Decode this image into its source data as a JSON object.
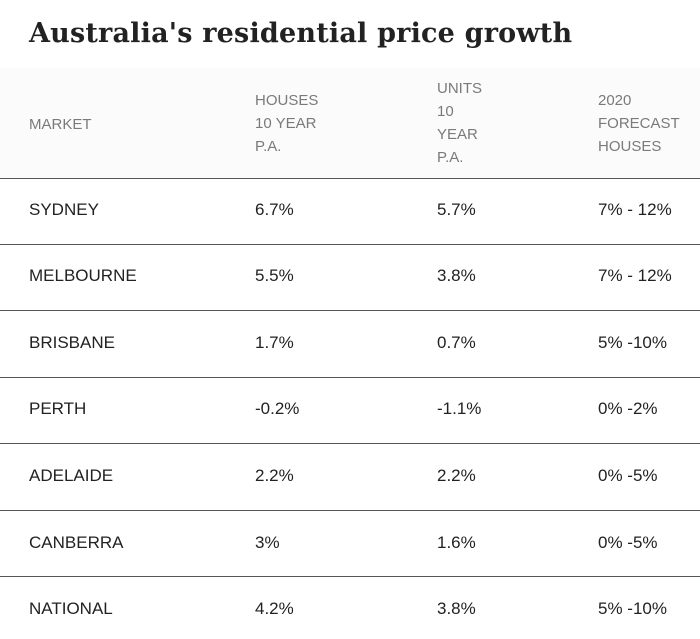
{
  "title": "Australia's residential price growth",
  "table": {
    "headers": [
      "MARKET",
      "HOUSES\n10 YEAR\nP.A.",
      "UNITS\n10\nYEAR\nP.A.",
      "2020\nFORECAST\nHOUSES"
    ],
    "rows": [
      [
        "SYDNEY",
        "6.7%",
        "5.7%",
        "7% - 12%"
      ],
      [
        "MELBOURNE",
        "5.5%",
        "3.8%",
        "7% - 12%"
      ],
      [
        "BRISBANE",
        "1.7%",
        "0.7%",
        "5% -10%"
      ],
      [
        "PERTH",
        "-0.2%",
        "-1.1%",
        "0% -2%"
      ],
      [
        "ADELAIDE",
        "2.2%",
        "2.2%",
        "0% -5%"
      ],
      [
        "CANBERRA",
        "3%",
        "1.6%",
        "0% -5%"
      ],
      [
        "NATIONAL",
        "4.2%",
        "3.8%",
        "5% -10%"
      ]
    ]
  }
}
